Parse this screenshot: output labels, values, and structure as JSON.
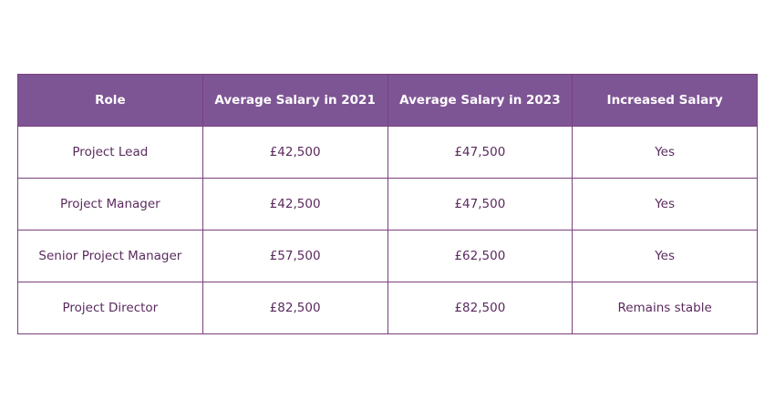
{
  "table": {
    "header": [
      "Role",
      "Average Salary in 2021",
      "Average Salary in 2023",
      "Increased Salary"
    ],
    "rows": [
      [
        "Project Lead",
        "£42,500",
        "£47,500",
        "Yes"
      ],
      [
        "Project Manager",
        "£42,500",
        "£47,500",
        "Yes"
      ],
      [
        "Senior Project Manager",
        "£57,500",
        "£62,500",
        "Yes"
      ],
      [
        "Project Director",
        "£82,500",
        "£82,500",
        "Remains stable"
      ]
    ]
  }
}
